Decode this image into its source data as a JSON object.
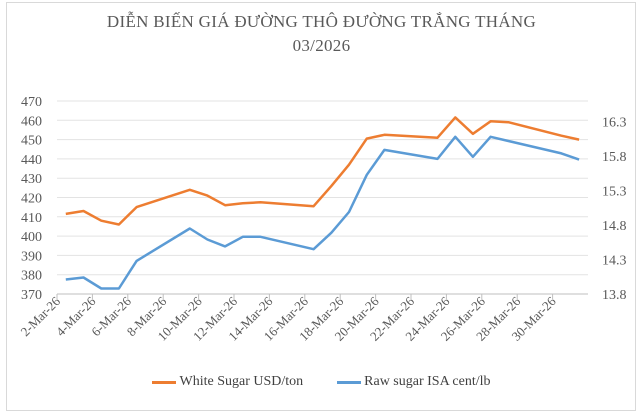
{
  "chart_data": {
    "type": "line",
    "title": "DIỄN BIẾN GIÁ ĐƯỜNG THÔ ĐƯỜNG TRẮNG THÁNG",
    "subtitle": "03/2026",
    "x": [
      "2026-03-02",
      "2026-03-03",
      "2026-03-04",
      "2026-03-05",
      "2026-03-06",
      "2026-03-09",
      "2026-03-10",
      "2026-03-11",
      "2026-03-12",
      "2026-03-13",
      "2026-03-16",
      "2026-03-17",
      "2026-03-18",
      "2026-03-19",
      "2026-03-20",
      "2026-03-23",
      "2026-03-24",
      "2026-03-25",
      "2026-03-26",
      "2026-03-27",
      "2026-03-30",
      "2026-03-31"
    ],
    "x_ticks": [
      "2-Mar-26",
      "4-Mar-26",
      "6-Mar-26",
      "8-Mar-26",
      "10-Mar-26",
      "12-Mar-26",
      "14-Mar-26",
      "16-Mar-26",
      "18-Mar-26",
      "20-Mar-26",
      "22-Mar-26",
      "24-Mar-26",
      "26-Mar-26",
      "28-Mar-26",
      "30-Mar-26"
    ],
    "series": [
      {
        "name": "White Sugar USD/ton",
        "axis": "left",
        "color": "#ED7D31",
        "values": [
          411.5,
          413,
          408,
          406,
          415,
          424,
          421,
          416,
          417,
          417.5,
          415.5,
          426,
          437,
          450.5,
          452.5,
          451,
          461.5,
          453,
          459.5,
          459,
          452,
          450
        ]
      },
      {
        "name": "Raw sugar ISA cent/lb",
        "axis": "right",
        "color": "#5B9BD5",
        "values": [
          14.01,
          14.04,
          13.88,
          13.88,
          14.28,
          14.75,
          14.59,
          14.49,
          14.63,
          14.63,
          14.45,
          14.69,
          14.99,
          15.53,
          15.89,
          15.76,
          16.08,
          15.79,
          16.08,
          16.02,
          15.84,
          15.75
        ]
      }
    ],
    "y_left": {
      "ylim": [
        370,
        470
      ],
      "ticks": [
        370,
        380,
        390,
        400,
        410,
        420,
        430,
        440,
        450,
        460,
        470
      ]
    },
    "y_right": {
      "ylim": [
        13.8,
        16.6
      ],
      "ticks": [
        13.8,
        14.3,
        14.8,
        15.3,
        15.8,
        16.3
      ]
    },
    "grid": true,
    "legend": "bottom",
    "x_range": [
      "2026-03-02",
      "2026-03-31"
    ]
  }
}
